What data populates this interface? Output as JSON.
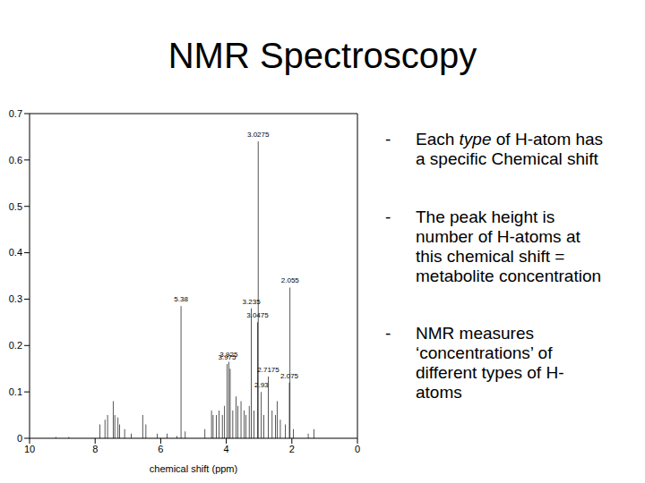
{
  "title": "NMR Spectroscopy",
  "chart_data": {
    "type": "bar",
    "x_label": "chemical shift (ppm)",
    "color": "#000000",
    "xlim": [
      10,
      0
    ],
    "xticks": [
      10,
      8,
      6,
      4,
      2,
      0
    ],
    "ylim": [
      0,
      0.7
    ],
    "yticks": [
      0,
      0.1,
      0.2,
      0.3,
      0.4,
      0.5,
      0.6,
      0.7
    ],
    "grid": false,
    "x": [
      3.0275,
      2.055,
      5.38,
      3.235,
      3.0475,
      3.925,
      3.975,
      3.88,
      2.7175,
      2.075,
      2.93,
      9.2,
      8.8,
      7.85,
      7.7,
      7.62,
      7.45,
      7.4,
      7.3,
      7.25,
      7.1,
      6.9,
      6.55,
      6.45,
      6.1,
      5.8,
      5.5,
      5.25,
      4.65,
      4.45,
      4.4,
      4.3,
      4.22,
      4.12,
      4.05,
      3.8,
      3.7,
      3.65,
      3.55,
      3.45,
      3.4,
      3.3,
      3.15,
      2.85,
      2.6,
      2.5,
      2.45,
      2.35,
      2.2,
      1.95,
      1.5,
      1.33
    ],
    "values": [
      0.64,
      0.325,
      0.285,
      0.28,
      0.25,
      0.165,
      0.16,
      0.15,
      0.133,
      0.12,
      0.1,
      0.003,
      0.003,
      0.03,
      0.04,
      0.05,
      0.08,
      0.05,
      0.045,
      0.03,
      0.02,
      0.01,
      0.05,
      0.03,
      0.01,
      0.01,
      0.005,
      0.015,
      0.02,
      0.06,
      0.05,
      0.05,
      0.06,
      0.05,
      0.07,
      0.06,
      0.09,
      0.07,
      0.08,
      0.06,
      0.05,
      0.07,
      0.06,
      0.05,
      0.06,
      0.05,
      0.08,
      0.04,
      0.03,
      0.02,
      0.01,
      0.02
    ],
    "annotations": [
      {
        "x": 3.0275,
        "y": 0.64,
        "text": "3.0275"
      },
      {
        "x": 2.055,
        "y": 0.325,
        "text": "2.055"
      },
      {
        "x": 5.38,
        "y": 0.285,
        "text": "5.38"
      },
      {
        "x": 3.235,
        "y": 0.28,
        "text": "3.235"
      },
      {
        "x": 3.0475,
        "y": 0.25,
        "text": "3.0475"
      },
      {
        "x": 3.925,
        "y": 0.165,
        "text": "3.925"
      },
      {
        "x": 3.975,
        "y": 0.16,
        "text": "3.975"
      },
      {
        "x": 2.7175,
        "y": 0.133,
        "text": "2.7175"
      },
      {
        "x": 2.075,
        "y": 0.12,
        "text": "2.075"
      },
      {
        "x": 2.93,
        "y": 0.1,
        "text": "2.93"
      }
    ]
  },
  "bullets": [
    {
      "text": "Each type of H-atom has a specific Chemical shift",
      "italic": "type"
    },
    {
      "text": "The peak height is number of H-atoms at this chemical shift = metabolite concentration"
    },
    {
      "text": "NMR measures ‘concentrations’ of different types of H-atoms"
    }
  ]
}
